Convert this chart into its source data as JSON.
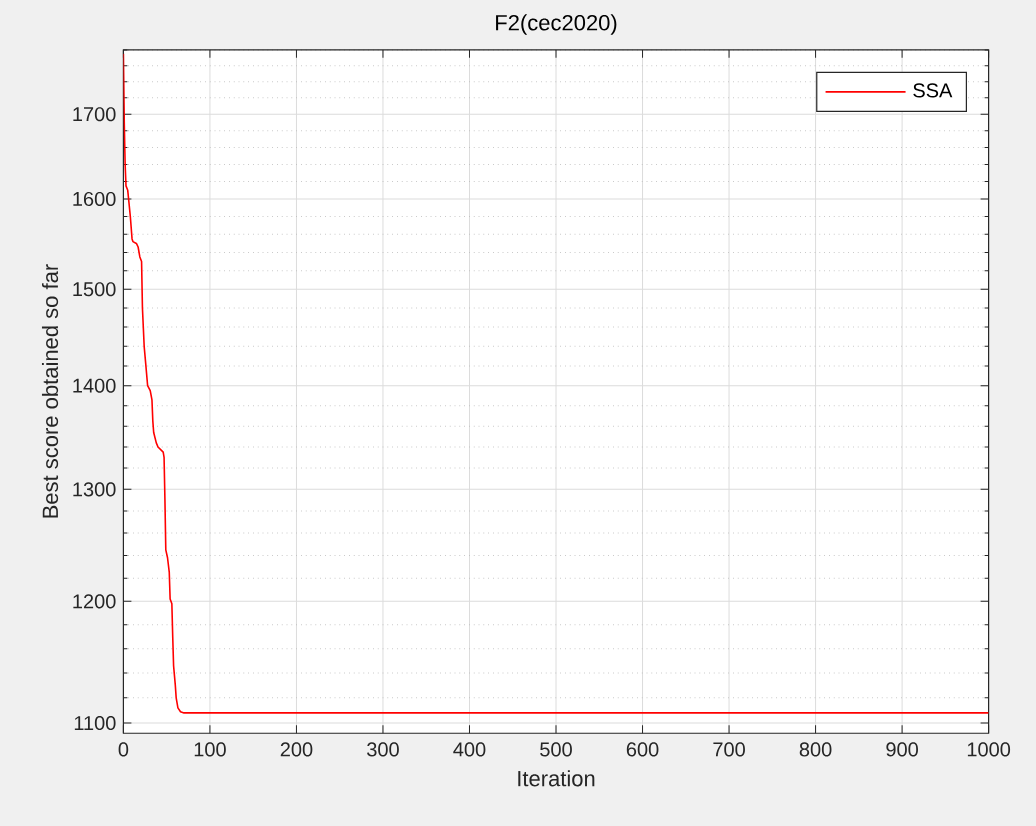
{
  "chart_data": {
    "type": "line",
    "title": "F2(cec2020)",
    "xlabel": "Iteration",
    "ylabel": "Best score obtained so far",
    "x": [
      0,
      1,
      2,
      3,
      5,
      6,
      8,
      10,
      11,
      15,
      17,
      19,
      21,
      22,
      24,
      26,
      28,
      31,
      33,
      34,
      35,
      38,
      40,
      46,
      47,
      48,
      49,
      51,
      53,
      54,
      56,
      57,
      58,
      60,
      61,
      63,
      66,
      70,
      1000
    ],
    "series": [
      {
        "name": "SSA",
        "color": "#ff0000",
        "values": [
          1775,
          1690,
          1640,
          1615,
          1610,
          1600,
          1580,
          1555,
          1552,
          1550,
          1546,
          1535,
          1530,
          1480,
          1440,
          1420,
          1400,
          1395,
          1386,
          1365,
          1354,
          1344,
          1340,
          1335,
          1330,
          1290,
          1245,
          1238,
          1225,
          1202,
          1198,
          1170,
          1146,
          1130,
          1120,
          1112,
          1109,
          1108,
          1108
        ]
      }
    ],
    "xlim": [
      0,
      1000
    ],
    "ylim": [
      1092,
      1780
    ],
    "xticks": [
      0,
      100,
      200,
      300,
      400,
      500,
      600,
      700,
      800,
      900,
      1000
    ],
    "yticks": [
      1100,
      1200,
      1300,
      1400,
      1500,
      1600,
      1700
    ],
    "log": "y",
    "grid": true,
    "legend": "top right"
  }
}
